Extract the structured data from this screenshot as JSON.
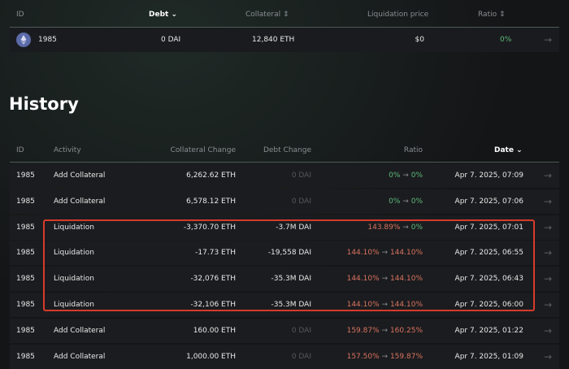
{
  "vault": {
    "headers": {
      "id": "ID",
      "debt": "Debt",
      "collateral": "Collateral",
      "liquidation_price": "Liquidation price",
      "ratio": "Ratio"
    },
    "row": {
      "id": "1985",
      "debt": "0 DAI",
      "collateral": "12,840 ETH",
      "liquidation_price": "$0",
      "ratio": "0%",
      "icon": "ethereum-icon"
    }
  },
  "history": {
    "title": "History",
    "headers": {
      "id": "ID",
      "activity": "Activity",
      "collateral_change": "Collateral Change",
      "debt_change": "Debt Change",
      "ratio": "Ratio",
      "date": "Date"
    },
    "rows": [
      {
        "id": "1985",
        "activity": "Add Collateral",
        "collateral_change": "6,262.62 ETH",
        "debt_change": "0 DAI",
        "ratio_from": "0%",
        "ratio_to": "0%",
        "date": "Apr 7. 2025, 07:09"
      },
      {
        "id": "1985",
        "activity": "Add Collateral",
        "collateral_change": "6,578.12 ETH",
        "debt_change": "0 DAI",
        "ratio_from": "0%",
        "ratio_to": "0%",
        "date": "Apr 7. 2025, 07:06"
      },
      {
        "id": "1985",
        "activity": "Liquidation",
        "collateral_change": "-3,370.70 ETH",
        "debt_change": "-3.7M DAI",
        "ratio_from": "143.89%",
        "ratio_to": "0%",
        "date": "Apr 7. 2025, 07:01"
      },
      {
        "id": "1985",
        "activity": "Liquidation",
        "collateral_change": "-17.73 ETH",
        "debt_change": "-19,558 DAI",
        "ratio_from": "144.10%",
        "ratio_to": "144.10%",
        "date": "Apr 7. 2025, 06:55"
      },
      {
        "id": "1985",
        "activity": "Liquidation",
        "collateral_change": "-32,076 ETH",
        "debt_change": "-35.3M DAI",
        "ratio_from": "144.10%",
        "ratio_to": "144.10%",
        "date": "Apr 7. 2025, 06:43"
      },
      {
        "id": "1985",
        "activity": "Liquidation",
        "collateral_change": "-32,106 ETH",
        "debt_change": "-35.3M DAI",
        "ratio_from": "144.10%",
        "ratio_to": "144.10%",
        "date": "Apr 7. 2025, 06:00"
      },
      {
        "id": "1985",
        "activity": "Add Collateral",
        "collateral_change": "160.00 ETH",
        "debt_change": "0 DAI",
        "ratio_from": "159.87%",
        "ratio_to": "160.25%",
        "date": "Apr 7. 2025, 01:22"
      },
      {
        "id": "1985",
        "activity": "Add Collateral",
        "collateral_change": "1,000.00 ETH",
        "debt_change": "0 DAI",
        "ratio_from": "157.50%",
        "ratio_to": "159.87%",
        "date": "Apr 7. 2025, 01:09"
      }
    ]
  },
  "colors": {
    "highlight": "#d63b2b",
    "positive": "#5dbb7a",
    "negative": "#d9735f"
  }
}
